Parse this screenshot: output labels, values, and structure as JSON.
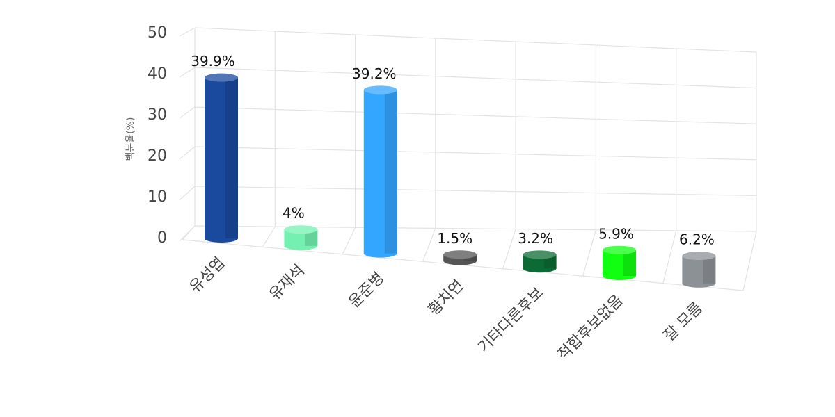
{
  "chart_data": {
    "type": "bar3d",
    "y_label": "백분율(%)",
    "categories": [
      "유성엽",
      "유재석",
      "윤준병",
      "황치연",
      "기타다른후보",
      "적합후보없음",
      "잘 모름"
    ],
    "values": [
      39.9,
      4,
      39.2,
      1.5,
      3.2,
      5.9,
      6.2
    ],
    "value_labels": [
      "39.9%",
      "4%",
      "39.2%",
      "1.5%",
      "3.2%",
      "5.9%",
      "6.2%"
    ],
    "colors": [
      "#1a4a9e",
      "#74f0b0",
      "#33a6ff",
      "#555555",
      "#0c6b35",
      "#11ff11",
      "#8c9196"
    ],
    "ylim": [
      0,
      50
    ],
    "yticks": [
      0,
      10,
      20,
      30,
      40,
      50
    ],
    "grid": true
  }
}
